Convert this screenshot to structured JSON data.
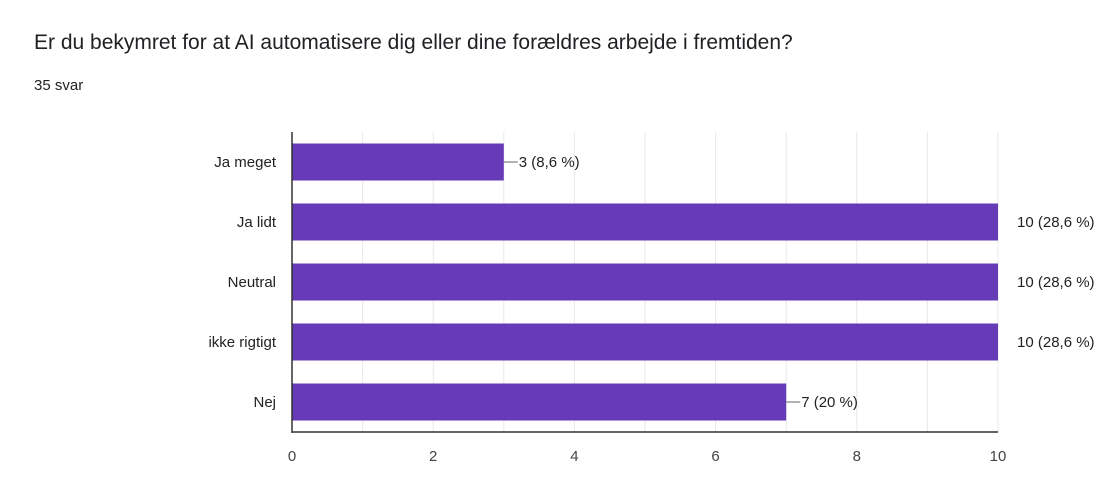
{
  "question": {
    "title": "Er du bekymret for at AI automatisere dig eller dine forældres arbejde i fremtiden?",
    "responses": "35 svar"
  },
  "chart_data": {
    "type": "bar",
    "orientation": "horizontal",
    "categories": [
      "Ja meget",
      "Ja lidt",
      "Neutral",
      "ikke rigtigt",
      "Nej"
    ],
    "values": [
      3,
      10,
      10,
      10,
      7
    ],
    "data_labels": [
      "3 (8,6 %)",
      "10 (28,6 %)",
      "10 (28,6 %)",
      "10 (28,6 %)",
      "7 (20 %)"
    ],
    "xlim": [
      0,
      10
    ],
    "xticks": [
      0,
      2,
      4,
      6,
      8,
      10
    ],
    "grid": true,
    "bar_color": "#673ab7"
  }
}
